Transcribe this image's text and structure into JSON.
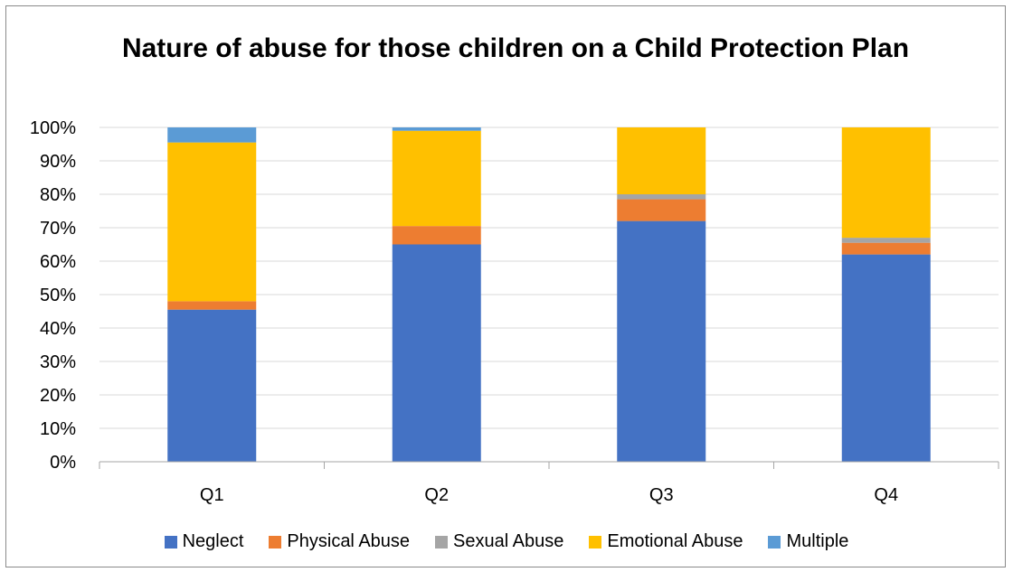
{
  "chart_data": {
    "type": "bar",
    "stacked": true,
    "title": "Nature of abuse for those children on a Child Protection Plan",
    "xlabel": "",
    "ylabel": "",
    "categories": [
      "Q1",
      "Q2",
      "Q3",
      "Q4"
    ],
    "ylim": [
      0,
      100
    ],
    "yticks": [
      "0%",
      "10%",
      "20%",
      "30%",
      "40%",
      "50%",
      "60%",
      "70%",
      "80%",
      "90%",
      "100%"
    ],
    "grid": true,
    "legend_position": "bottom",
    "series": [
      {
        "name": "Neglect",
        "color": "#4472C4",
        "values": [
          45.5,
          65,
          72,
          62
        ]
      },
      {
        "name": "Physical Abuse",
        "color": "#ED7D31",
        "values": [
          2.5,
          5.5,
          6.5,
          3.5
        ]
      },
      {
        "name": "Sexual Abuse",
        "color": "#A5A5A5",
        "values": [
          0,
          0,
          1.5,
          1.5
        ]
      },
      {
        "name": "Emotional Abuse",
        "color": "#FFC000",
        "values": [
          47.5,
          28.5,
          20,
          33
        ]
      },
      {
        "name": "Multiple",
        "color": "#5B9BD5",
        "values": [
          4.5,
          1,
          0,
          0
        ]
      }
    ]
  }
}
